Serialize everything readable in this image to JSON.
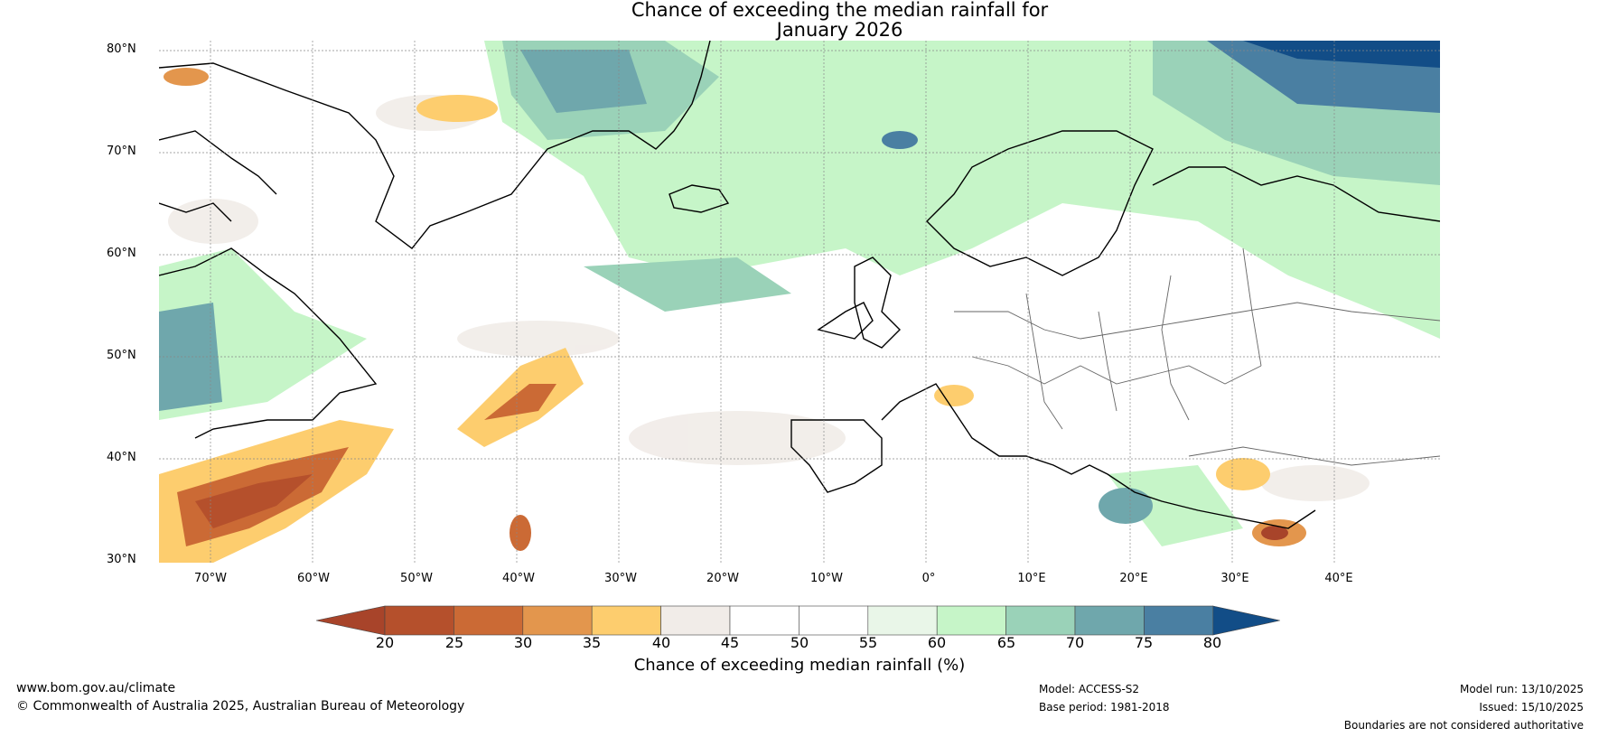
{
  "title_line1": "Chance of exceeding the median rainfall for",
  "title_line2": "January 2026",
  "lat_labels": [
    "80°N",
    "70°N",
    "60°N",
    "50°N",
    "40°N",
    "30°N"
  ],
  "lon_labels": [
    "70°W",
    "60°W",
    "50°W",
    "40°W",
    "30°W",
    "20°W",
    "10°W",
    "0°",
    "10°E",
    "20°E",
    "30°E",
    "40°E"
  ],
  "colorbar": {
    "ticks": [
      "20",
      "25",
      "30",
      "35",
      "40",
      "45",
      "50",
      "55",
      "60",
      "65",
      "70",
      "75",
      "80"
    ],
    "label": "Chance of exceeding median rainfall (%)",
    "colors": [
      "#a8442a",
      "#b5502c",
      "#cb6a35",
      "#e3964d",
      "#fdcd6e",
      "#f1ece8",
      "#ffffff",
      "#ffffff",
      "#e9f6e8",
      "#c6f5c8",
      "#9ad2b8",
      "#6fa7ac",
      "#4a7fa2",
      "#124d87"
    ]
  },
  "footer": {
    "url": "www.bom.gov.au/climate",
    "copyright": "© Commonwealth of Australia 2025, Australian Bureau of Meteorology",
    "model": "Model: ACCESS-S2",
    "base_period": "Base period: 1981-2018",
    "model_run": "Model run: 13/10/2025",
    "issued": "Issued: 15/10/2025",
    "disclaimer": "Boundaries are not considered authoritative"
  }
}
